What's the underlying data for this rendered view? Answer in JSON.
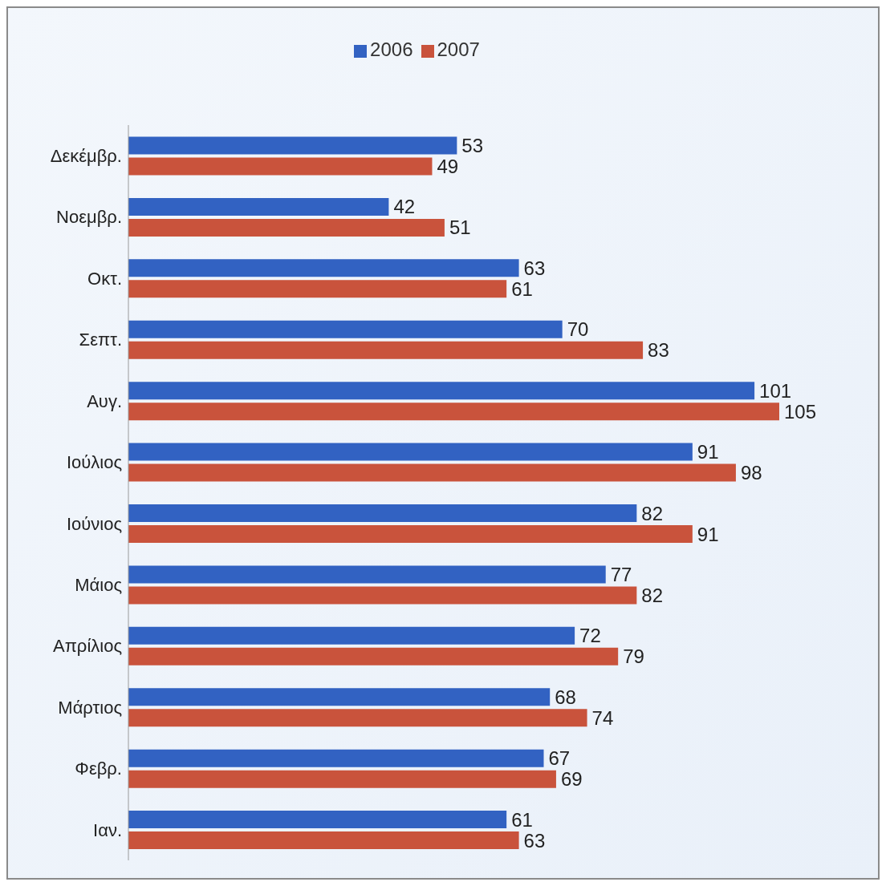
{
  "chart_data": {
    "type": "bar",
    "orientation": "horizontal",
    "categories": [
      "Δεκέμβρ.",
      "Νοεμβρ.",
      "Οκτ.",
      "Σεπτ.",
      "Αυγ.",
      "Ιούλιος",
      "Ιούνιος",
      "Μάιος",
      "Απρίλιος",
      "Μάρτιος",
      "Φεβρ.",
      "Ιαν."
    ],
    "series": [
      {
        "name": "2006",
        "color": "#3262c2",
        "values": [
          53,
          42,
          63,
          70,
          101,
          91,
          82,
          77,
          72,
          68,
          67,
          61
        ]
      },
      {
        "name": "2007",
        "color": "#c9533c",
        "values": [
          49,
          51,
          61,
          83,
          105,
          98,
          91,
          82,
          79,
          74,
          69,
          63
        ]
      }
    ],
    "data_labels": true,
    "legend": "top",
    "grid": false
  }
}
